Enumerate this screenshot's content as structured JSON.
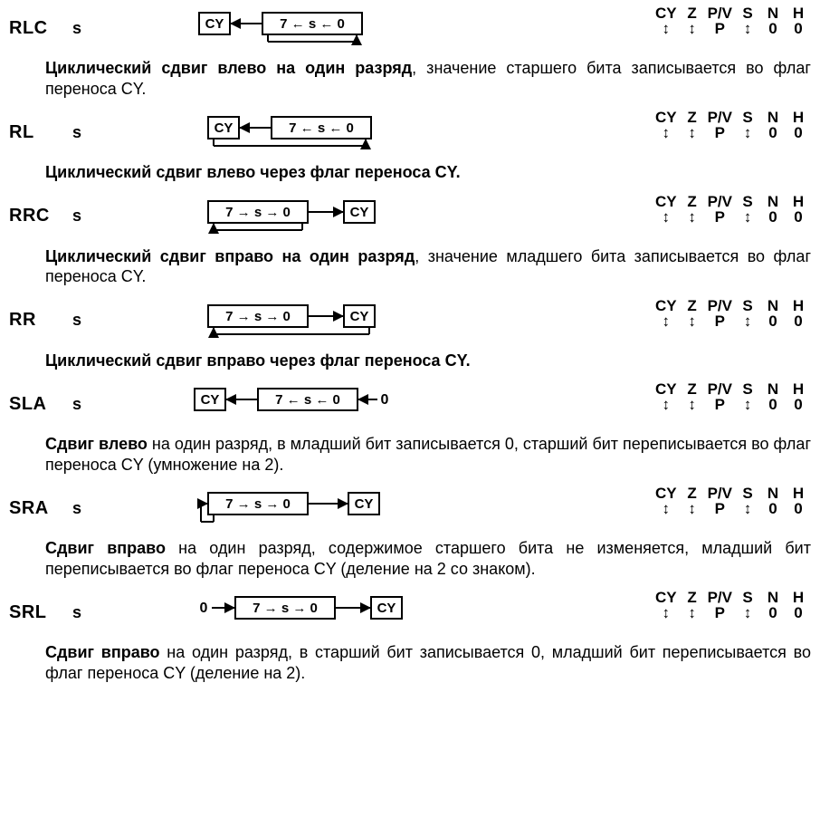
{
  "flag_headers": [
    "CY",
    "Z",
    "P/V",
    "S",
    "N",
    "H"
  ],
  "arrow_updown": "↕",
  "instructions": [
    {
      "mnemonic": "RLC",
      "operand": "s",
      "flags": [
        "↕",
        "↕",
        "P",
        "↕",
        "0",
        "0"
      ],
      "diagram": "rlc",
      "desc_bold": "Циклический сдвиг влево на один разряд",
      "desc_rest": ", значение старшего бита записывается во флаг переноса CY."
    },
    {
      "mnemonic": "RL",
      "operand": "s",
      "flags": [
        "↕",
        "↕",
        "P",
        "↕",
        "0",
        "0"
      ],
      "diagram": "rl",
      "desc_bold": "Циклический сдвиг влево через флаг переноса CY.",
      "desc_rest": ""
    },
    {
      "mnemonic": "RRC",
      "operand": "s",
      "flags": [
        "↕",
        "↕",
        "P",
        "↕",
        "0",
        "0"
      ],
      "diagram": "rrc",
      "desc_bold": "Циклический сдвиг вправо на один разряд",
      "desc_rest": ", значение младшего бита записывается во флаг переноса CY."
    },
    {
      "mnemonic": "RR",
      "operand": "s",
      "flags": [
        "↕",
        "↕",
        "P",
        "↕",
        "0",
        "0"
      ],
      "diagram": "rr",
      "desc_bold": "Циклический сдвиг вправо через флаг переноса CY.",
      "desc_rest": ""
    },
    {
      "mnemonic": "SLA",
      "operand": "s",
      "flags": [
        "↕",
        "↕",
        "P",
        "↕",
        "0",
        "0"
      ],
      "diagram": "sla",
      "desc_bold": "Сдвиг влево",
      "desc_rest": " на один разряд, в младший бит записывается 0, старший бит переписывается во флаг переноса CY (умножение на 2)."
    },
    {
      "mnemonic": "SRA",
      "operand": "s",
      "flags": [
        "↕",
        "↕",
        "P",
        "↕",
        "0",
        "0"
      ],
      "diagram": "sra",
      "desc_bold": "Сдвиг вправо",
      "desc_rest": " на один разряд, содержимое старшего бита не изменяется, младший бит переписывается во флаг переноса CY (деление на 2 со знаком)."
    },
    {
      "mnemonic": "SRL",
      "operand": "s",
      "flags": [
        "↕",
        "↕",
        "P",
        "↕",
        "0",
        "0"
      ],
      "diagram": "srl",
      "desc_bold": "Сдвиг вправо",
      "desc_rest": " на один разряд, в старший бит записывается 0, младший бит переписывается во флаг переноса CY (деление на 2)."
    }
  ],
  "labels": {
    "CY": "CY",
    "reg_left": "7 ← s ← 0",
    "reg_right": "7 → s → 0",
    "zero": "0"
  },
  "style": {
    "box_stroke": "#000000",
    "line_stroke": "#000000",
    "line_width": 2,
    "font": "15px Arial",
    "bg": "#ffffff"
  }
}
